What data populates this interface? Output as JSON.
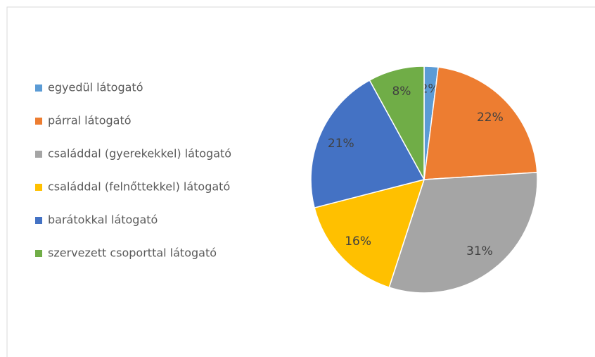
{
  "chart_data": {
    "type": "pie",
    "categories": [
      "egyedül látogató",
      "párral látogató",
      "családdal (gyerekekkel) látogató",
      "családdal (felnőttekkel) látogató",
      "barátokkal látogató",
      "szervezett csoporttal látogató"
    ],
    "values": [
      2,
      22,
      31,
      16,
      21,
      8
    ],
    "value_labels": [
      "2%",
      "22%",
      "31%",
      "16%",
      "21%",
      "8%"
    ],
    "colors": [
      "#5b9bd5",
      "#ed7d31",
      "#a5a5a5",
      "#ffc000",
      "#4472c4",
      "#70ad47"
    ],
    "legend": "left"
  }
}
